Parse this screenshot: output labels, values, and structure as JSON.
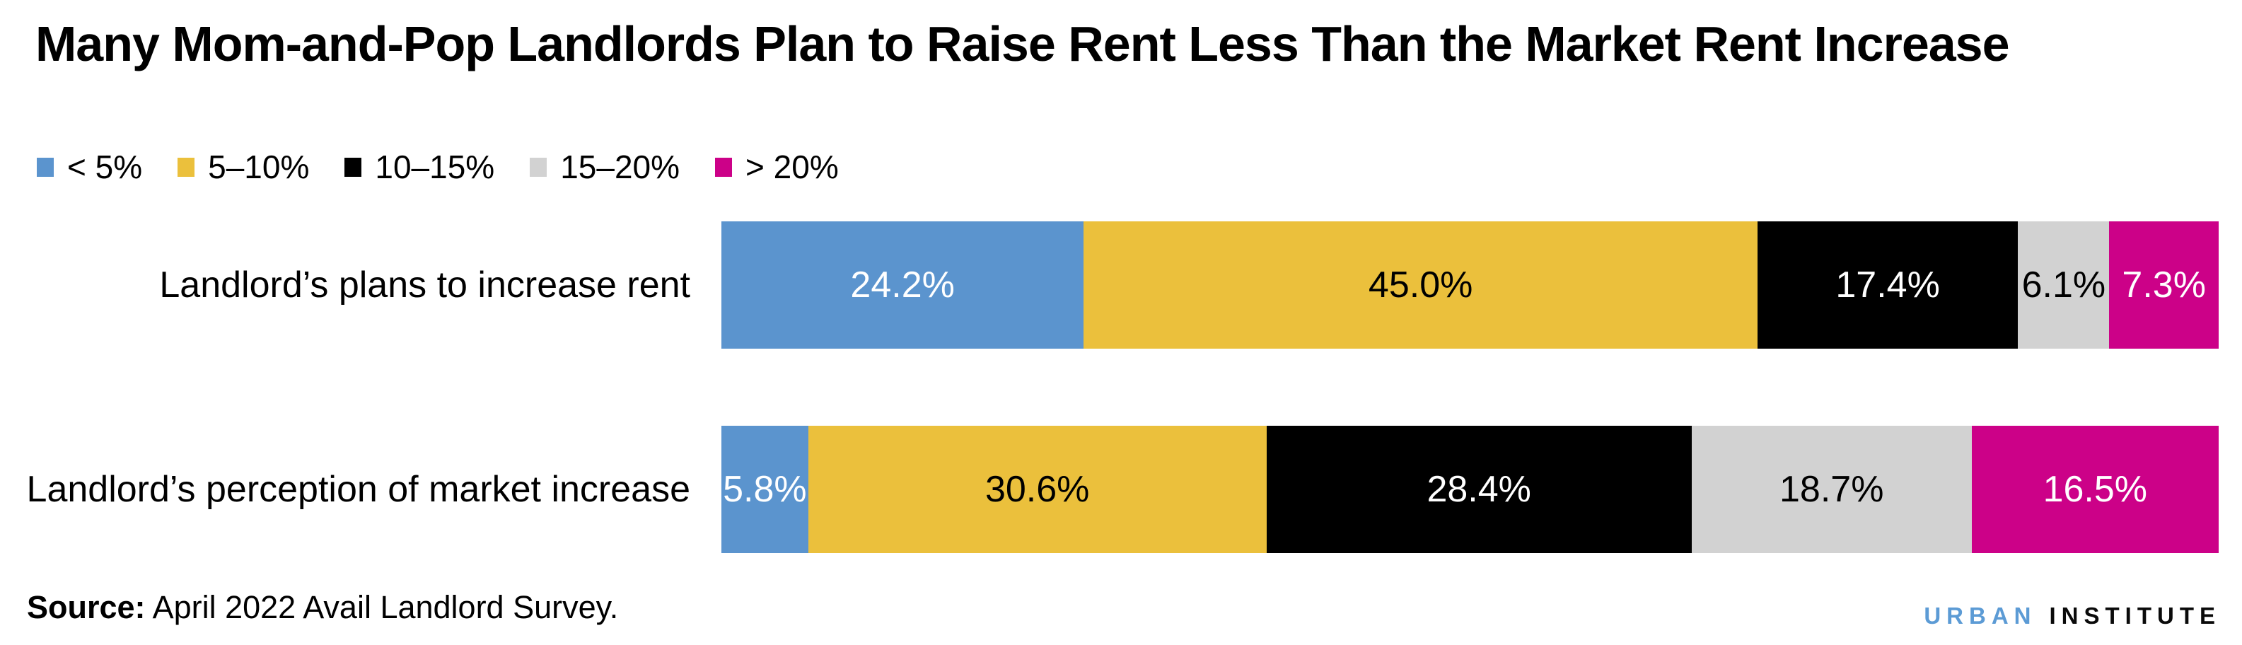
{
  "header": {
    "title": "Many Mom-and-Pop Landlords Plan to Raise Rent Less Than the Market Rent Increase"
  },
  "chart_data": {
    "type": "bar",
    "orientation": "horizontal",
    "stacked": true,
    "unit": "percent",
    "xlim": [
      0,
      100
    ],
    "grid": false,
    "legend_position": "top-left",
    "title": "Many Mom-and-Pop Landlords Plan to Raise Rent Less Than the Market Rent Increase",
    "categories": [
      "Landlord’s plans to increase rent",
      "Landlord’s perception of market increase"
    ],
    "series": [
      {
        "name": "< 5%",
        "color": "#5B94CE",
        "label_color": "#FFFFFF",
        "values": [
          24.2,
          5.8
        ],
        "labels": [
          "24.2%",
          "5.8%"
        ]
      },
      {
        "name": "5–10%",
        "color": "#EBC03C",
        "label_color": "#000000",
        "values": [
          45.0,
          30.6
        ],
        "labels": [
          "45.0%",
          "30.6%"
        ]
      },
      {
        "name": "10–15%",
        "color": "#000000",
        "label_color": "#FFFFFF",
        "values": [
          17.4,
          28.4
        ],
        "labels": [
          "17.4%",
          "28.4%"
        ]
      },
      {
        "name": "15–20%",
        "color": "#D2D2D2",
        "label_color": "#000000",
        "values": [
          6.1,
          18.7
        ],
        "labels": [
          "6.1%",
          "18.7%"
        ]
      },
      {
        "name": "> 20%",
        "color": "#CC0188",
        "label_color": "#FFFFFF",
        "values": [
          7.3,
          16.5
        ],
        "labels": [
          "7.3%",
          "16.5%"
        ]
      }
    ]
  },
  "footer": {
    "source_label": "Source:",
    "source_text": " April 2022 Avail Landlord Survey.",
    "logo": {
      "word1": "URBAN",
      "word2": "INSTITUTE",
      "word1_color": "#5C9BD5",
      "word2_color": "#0A0A0A"
    }
  }
}
